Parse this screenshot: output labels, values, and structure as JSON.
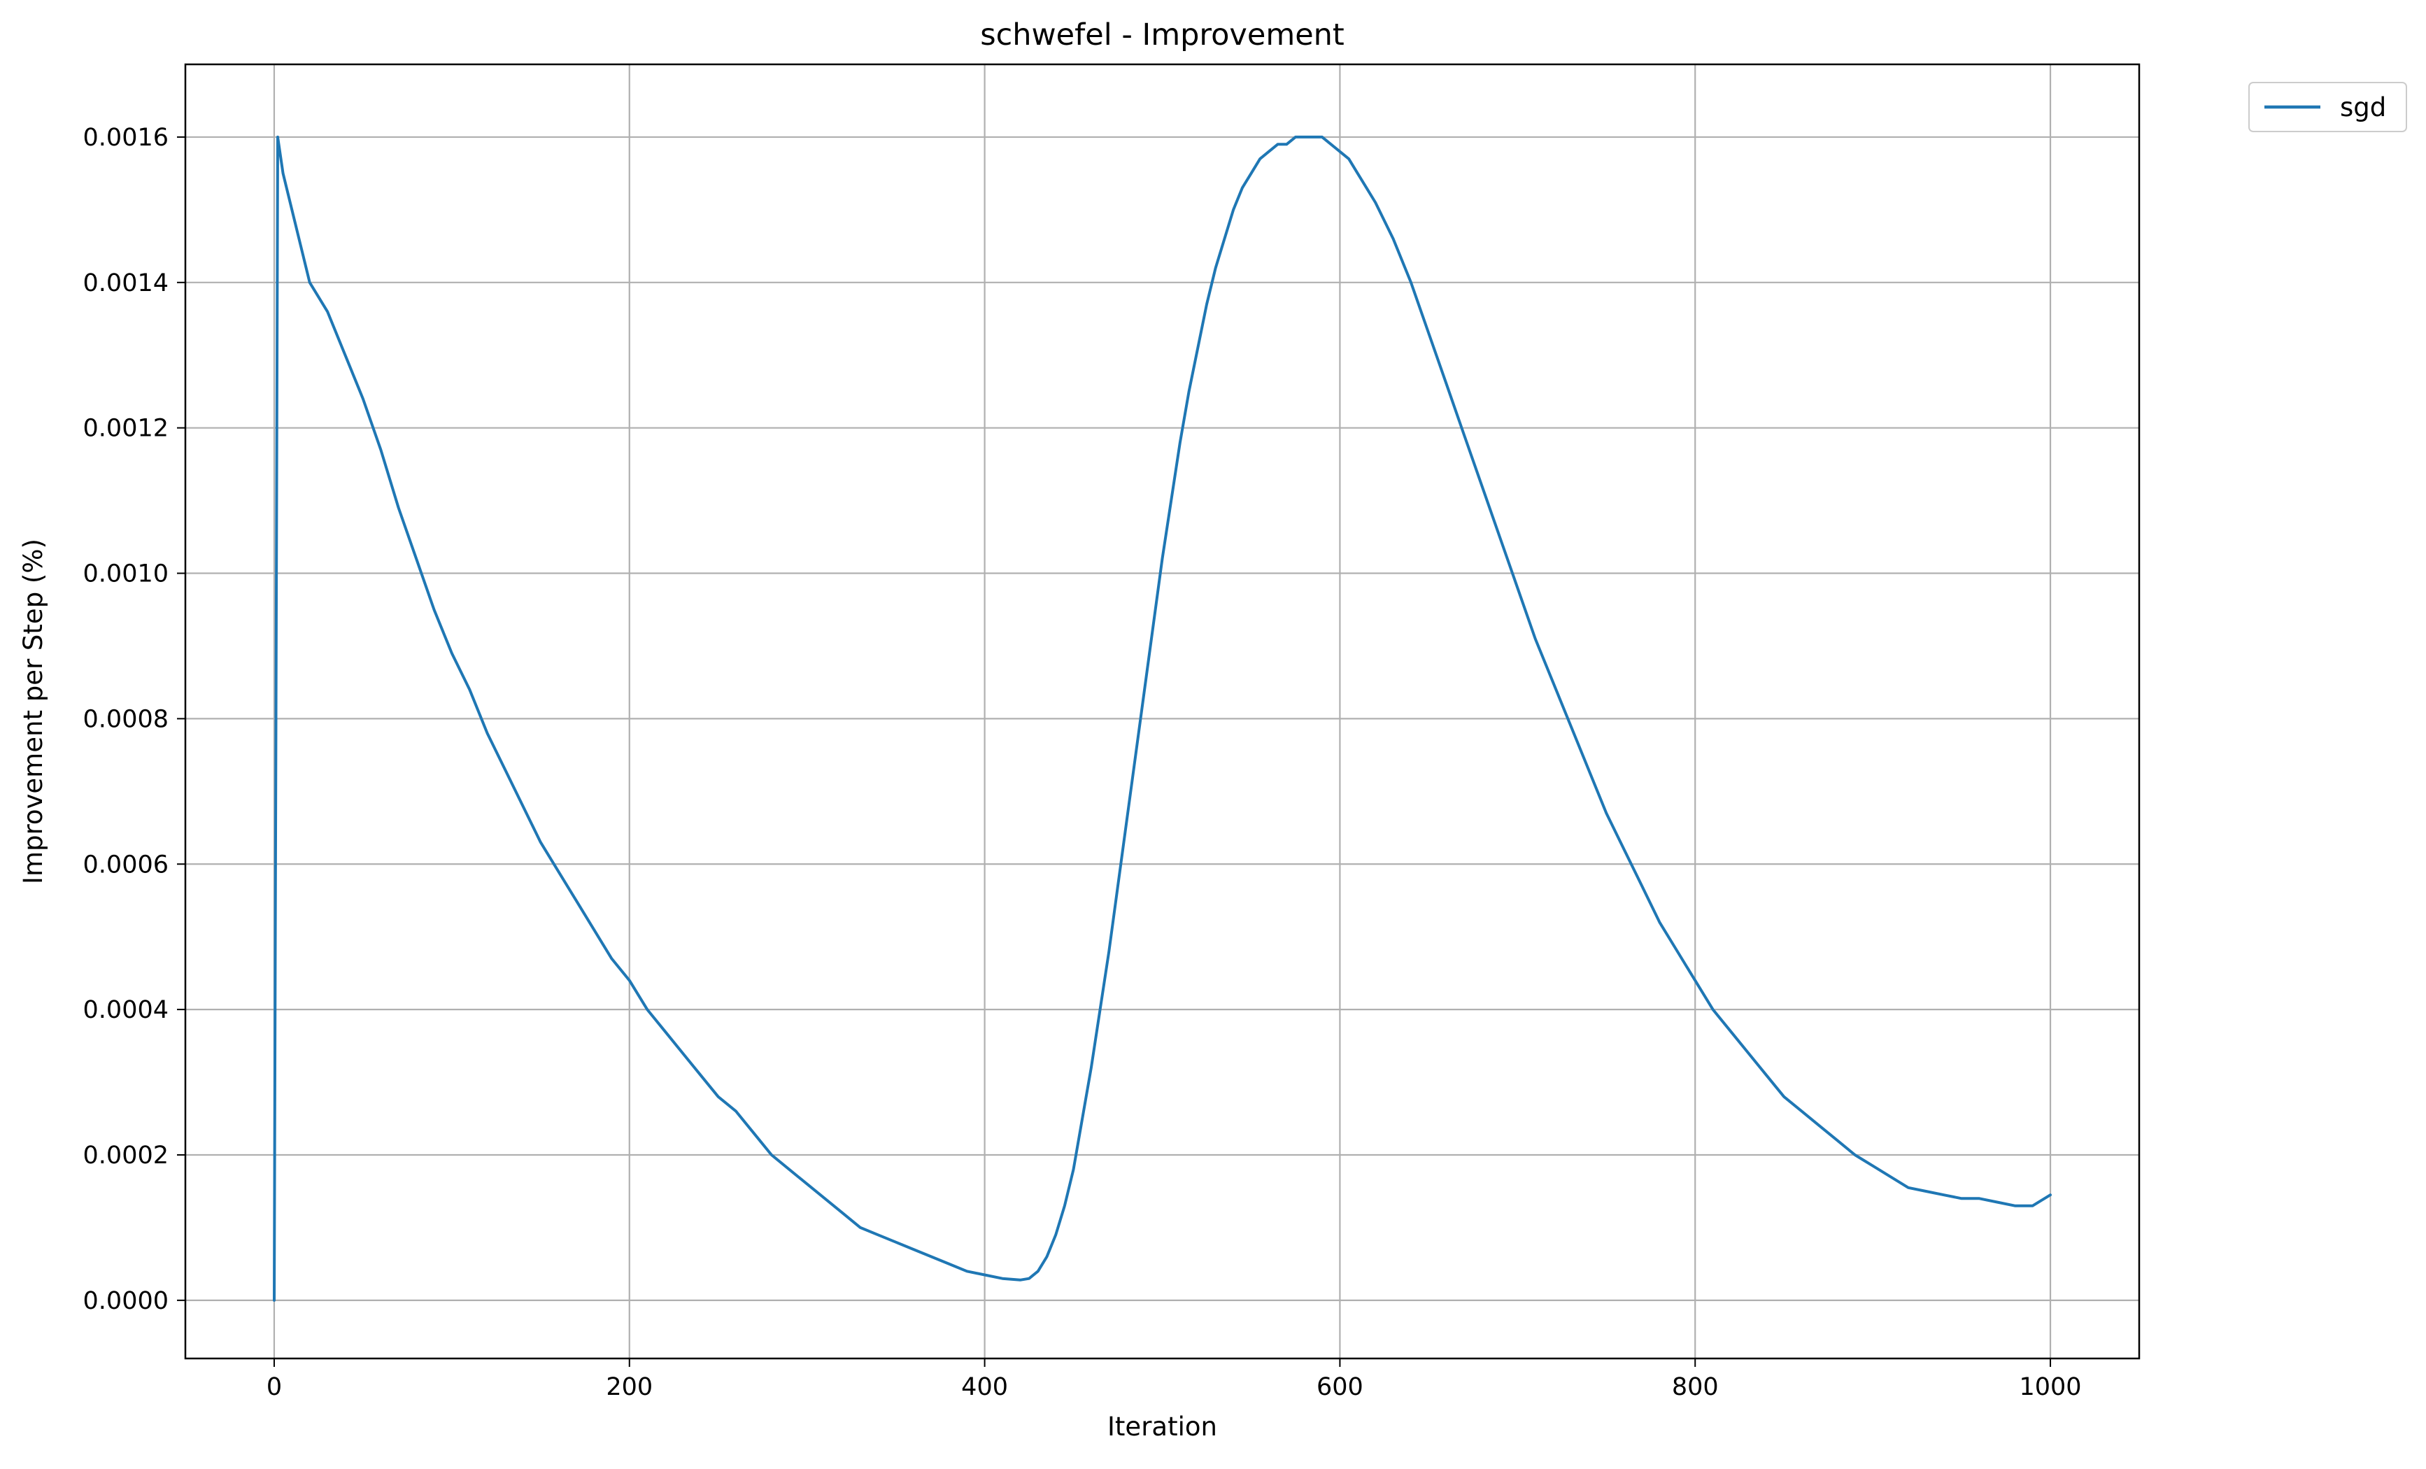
{
  "chart_data": {
    "type": "line",
    "title": "schwefel - Improvement",
    "xlabel": "Iteration",
    "ylabel": "Improvement per Step (%)",
    "xlim": [
      -50,
      1050
    ],
    "ylim": [
      -8e-05,
      0.0017
    ],
    "xticks": [
      0,
      200,
      400,
      600,
      800,
      1000
    ],
    "xtick_labels": [
      "0",
      "200",
      "400",
      "600",
      "800",
      "1000"
    ],
    "yticks": [
      0,
      0.0002,
      0.0004,
      0.0006,
      0.0008,
      0.001,
      0.0012,
      0.0014,
      0.0016
    ],
    "ytick_labels": [
      "0.0000",
      "0.0002",
      "0.0004",
      "0.0006",
      "0.0008",
      "0.0010",
      "0.0012",
      "0.0014",
      "0.0016"
    ],
    "grid": true,
    "legend_position": "outside-top-right",
    "series": [
      {
        "name": "sgd",
        "color": "#1f77b4",
        "x": [
          0,
          2,
          5,
          10,
          15,
          20,
          30,
          40,
          50,
          60,
          70,
          80,
          90,
          100,
          110,
          120,
          130,
          140,
          150,
          160,
          170,
          180,
          190,
          200,
          210,
          220,
          230,
          240,
          250,
          260,
          270,
          280,
          290,
          300,
          310,
          320,
          330,
          340,
          350,
          360,
          370,
          380,
          390,
          400,
          410,
          420,
          425,
          430,
          435,
          440,
          445,
          450,
          455,
          460,
          465,
          470,
          475,
          480,
          485,
          490,
          495,
          500,
          505,
          510,
          515,
          520,
          525,
          530,
          535,
          540,
          545,
          550,
          555,
          560,
          565,
          570,
          575,
          580,
          585,
          590,
          595,
          600,
          605,
          610,
          615,
          620,
          630,
          640,
          650,
          660,
          670,
          680,
          690,
          700,
          710,
          720,
          730,
          740,
          750,
          760,
          770,
          780,
          790,
          800,
          810,
          820,
          830,
          840,
          850,
          860,
          870,
          880,
          890,
          900,
          910,
          920,
          930,
          940,
          950,
          960,
          970,
          980,
          990,
          1000
        ],
        "y": [
          0,
          0.0016,
          0.00155,
          0.0015,
          0.00145,
          0.0014,
          0.00136,
          0.0013,
          0.00124,
          0.00117,
          0.00109,
          0.00102,
          0.00095,
          0.00089,
          0.00084,
          0.00078,
          0.00073,
          0.00068,
          0.00063,
          0.00059,
          0.00055,
          0.00051,
          0.00047,
          0.00044,
          0.0004,
          0.00037,
          0.00034,
          0.00031,
          0.00028,
          0.00026,
          0.00023,
          0.0002,
          0.00018,
          0.00016,
          0.00014,
          0.00012,
          0.0001,
          9e-05,
          8e-05,
          7e-05,
          6e-05,
          5e-05,
          4e-05,
          3.5e-05,
          3e-05,
          2.8e-05,
          3e-05,
          4e-05,
          6e-05,
          9e-05,
          0.00013,
          0.00018,
          0.00025,
          0.00032,
          0.0004,
          0.00048,
          0.00057,
          0.00066,
          0.00075,
          0.00084,
          0.00093,
          0.00102,
          0.0011,
          0.00118,
          0.00125,
          0.00131,
          0.00137,
          0.00142,
          0.00146,
          0.0015,
          0.00153,
          0.00155,
          0.00157,
          0.00158,
          0.00159,
          0.00159,
          0.0016,
          0.0016,
          0.0016,
          0.0016,
          0.00159,
          0.00158,
          0.00157,
          0.00155,
          0.00153,
          0.00151,
          0.00146,
          0.0014,
          0.00133,
          0.00126,
          0.00119,
          0.00112,
          0.00105,
          0.00098,
          0.00091,
          0.00085,
          0.00079,
          0.00073,
          0.00067,
          0.00062,
          0.00057,
          0.00052,
          0.00048,
          0.00044,
          0.0004,
          0.00037,
          0.00034,
          0.00031,
          0.00028,
          0.00026,
          0.00024,
          0.00022,
          0.0002,
          0.000185,
          0.00017,
          0.000155,
          0.00015,
          0.000145,
          0.00014,
          0.00014,
          0.000135,
          0.00013,
          0.00013,
          0.000145
        ]
      }
    ]
  }
}
